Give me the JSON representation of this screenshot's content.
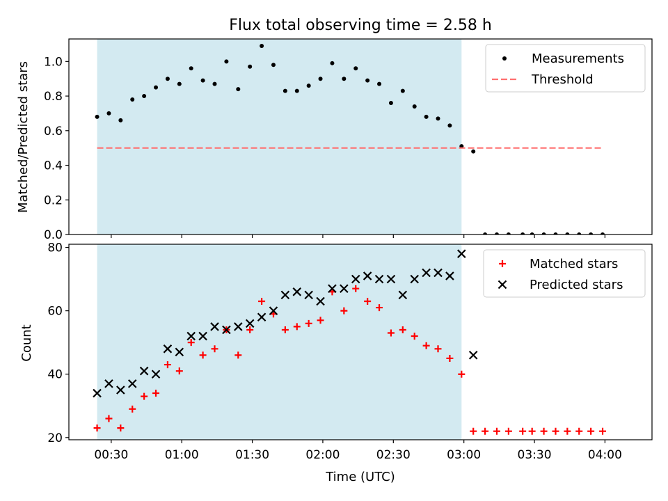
{
  "chart_data": [
    {
      "type": "scatter",
      "title": "Flux total observing time = 2.58 h",
      "xlabel": "",
      "ylabel": "Matched/Predicted stars",
      "ylim": [
        0,
        1.13
      ],
      "xlim": [
        "00:12",
        "04:20"
      ],
      "xticks": [
        "00:30",
        "01:00",
        "01:30",
        "02:00",
        "02:30",
        "03:00",
        "03:30",
        "04:00"
      ],
      "yticks": [
        "0.0",
        "0.2",
        "0.4",
        "0.6",
        "0.8",
        "1.0"
      ],
      "shaded_region": {
        "x_start": "00:24",
        "x_end": "02:59",
        "color": "#d3eaf1"
      },
      "legend": {
        "placement": "top-right",
        "entries": [
          "Measurements",
          "Threshold"
        ]
      },
      "series": [
        {
          "name": "Measurements",
          "marker": "dot",
          "color": "#000000",
          "x": [
            "00:24",
            "00:29",
            "00:34",
            "00:39",
            "00:44",
            "00:49",
            "00:54",
            "00:59",
            "01:04",
            "01:09",
            "01:14",
            "01:19",
            "01:24",
            "01:29",
            "01:34",
            "01:39",
            "01:44",
            "01:49",
            "01:54",
            "01:59",
            "02:04",
            "02:09",
            "02:14",
            "02:19",
            "02:24",
            "02:29",
            "02:34",
            "02:39",
            "02:44",
            "02:49",
            "02:54",
            "02:59",
            "03:04",
            "03:09",
            "03:14",
            "03:19",
            "03:25",
            "03:29",
            "03:34",
            "03:39",
            "03:44",
            "03:49",
            "03:54",
            "03:59"
          ],
          "y": [
            0.68,
            0.7,
            0.66,
            0.78,
            0.8,
            0.85,
            0.9,
            0.87,
            0.96,
            0.89,
            0.87,
            1.0,
            0.84,
            0.97,
            1.09,
            0.98,
            0.83,
            0.83,
            0.86,
            0.9,
            0.99,
            0.9,
            0.96,
            0.89,
            0.87,
            0.76,
            0.83,
            0.74,
            0.68,
            0.67,
            0.63,
            0.51,
            0.48,
            0.0,
            0.0,
            0.0,
            0.0,
            0.0,
            0.0,
            0.0,
            0.0,
            0.0,
            0.0,
            0.0
          ]
        },
        {
          "name": "Threshold",
          "style": "dashed",
          "color": "#ff7070",
          "x": [
            "00:24",
            "03:59"
          ],
          "y": [
            0.5,
            0.5
          ]
        }
      ]
    },
    {
      "type": "scatter",
      "title": "",
      "xlabel": "Time (UTC)",
      "ylabel": "Count",
      "ylim": [
        19.3,
        81
      ],
      "xlim": [
        "00:12",
        "04:20"
      ],
      "xticks": [
        "00:30",
        "01:00",
        "01:30",
        "02:00",
        "02:30",
        "03:00",
        "03:30",
        "04:00"
      ],
      "yticks": [
        "20",
        "40",
        "60",
        "80"
      ],
      "shaded_region": {
        "x_start": "00:24",
        "x_end": "02:59",
        "color": "#d3eaf1"
      },
      "legend": {
        "placement": "top-right",
        "entries": [
          "Matched stars",
          "Predicted stars"
        ]
      },
      "series": [
        {
          "name": "Matched stars",
          "marker": "plus",
          "color": "#ff0000",
          "x": [
            "00:24",
            "00:29",
            "00:34",
            "00:39",
            "00:44",
            "00:49",
            "00:54",
            "00:59",
            "01:04",
            "01:09",
            "01:14",
            "01:19",
            "01:24",
            "01:29",
            "01:34",
            "01:39",
            "01:44",
            "01:49",
            "01:54",
            "01:59",
            "02:04",
            "02:09",
            "02:14",
            "02:19",
            "02:24",
            "02:29",
            "02:34",
            "02:39",
            "02:44",
            "02:49",
            "02:54",
            "02:59",
            "03:04",
            "03:09",
            "03:14",
            "03:19",
            "03:25",
            "03:29",
            "03:34",
            "03:39",
            "03:44",
            "03:49",
            "03:54",
            "03:59"
          ],
          "y": [
            23,
            26,
            23,
            29,
            33,
            34,
            43,
            41,
            50,
            46,
            48,
            54,
            46,
            54,
            63,
            59,
            54,
            55,
            56,
            57,
            66,
            60,
            67,
            63,
            61,
            53,
            54,
            52,
            49,
            48,
            45,
            40,
            22,
            22,
            22,
            22,
            22,
            22,
            22,
            22,
            22,
            22,
            22,
            22
          ]
        },
        {
          "name": "Predicted stars",
          "marker": "x",
          "color": "#000000",
          "x": [
            "00:24",
            "00:29",
            "00:34",
            "00:39",
            "00:44",
            "00:49",
            "00:54",
            "00:59",
            "01:04",
            "01:09",
            "01:14",
            "01:19",
            "01:24",
            "01:29",
            "01:34",
            "01:39",
            "01:44",
            "01:49",
            "01:54",
            "01:59",
            "02:04",
            "02:09",
            "02:14",
            "02:19",
            "02:24",
            "02:29",
            "02:34",
            "02:39",
            "02:44",
            "02:49",
            "02:54",
            "02:59",
            "03:04"
          ],
          "y": [
            34,
            37,
            35,
            37,
            41,
            40,
            48,
            47,
            52,
            52,
            55,
            54,
            55,
            56,
            58,
            60,
            65,
            66,
            65,
            63,
            67,
            67,
            70,
            71,
            70,
            70,
            65,
            70,
            72,
            72,
            71,
            78,
            46
          ]
        }
      ]
    }
  ]
}
